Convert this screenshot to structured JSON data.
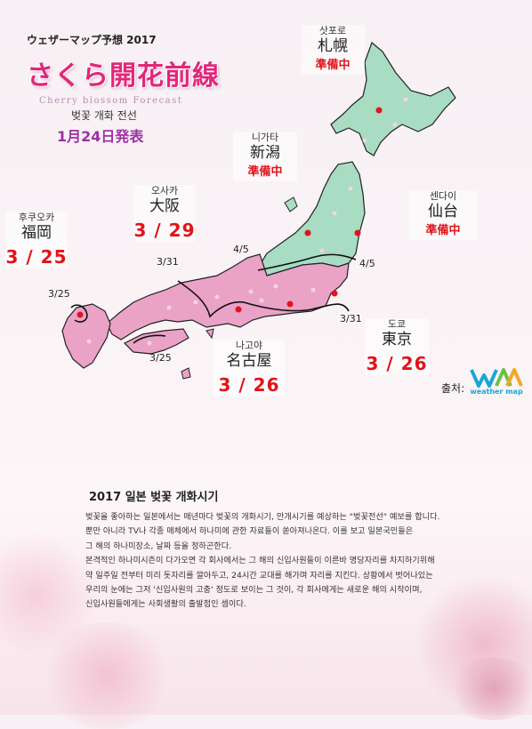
{
  "header": {
    "small_title": "ウェザーマップ予想 2017",
    "main_title": "さくら開花前線",
    "sub_title": "Cherry blossom Forecast",
    "korean_title": "벚꽃 개화 전선",
    "date": "1月24日発表"
  },
  "cities": [
    {
      "kr": "삿포로",
      "jp": "札幌",
      "status": "準備中"
    },
    {
      "kr": "니가타",
      "jp": "新潟",
      "status": "準備中"
    },
    {
      "kr": "센다이",
      "jp": "仙台",
      "status": "準備中"
    },
    {
      "kr": "오사카",
      "jp": "大阪",
      "date": "3 / 29"
    },
    {
      "kr": "후쿠오카",
      "jp": "福岡",
      "date": "3 / 25"
    },
    {
      "kr": "나고야",
      "jp": "名古屋",
      "date": "3 / 26"
    },
    {
      "kr": "도쿄",
      "jp": "東京",
      "date": "3 / 26"
    }
  ],
  "line_labels": [
    "4/5",
    "4/5",
    "3/31",
    "3/31",
    "3/25",
    "3/25"
  ],
  "source": {
    "label": "출처:",
    "logo_text": "weather map"
  },
  "article": {
    "title": "2017 일본 벚꽃 개화시기",
    "paragraphs": [
      "벚꽃을 좋아하는 일본에서는 매년마다 벚꽃의 개화시기, 만개시기를 예상하는 \"벚꽃전선\" 예보를 합니다.",
      "뿐만 아니라 TV나 각종 매체에서 하나미에 관한 자료들이 쏟아져나온다. 이를 보고 일본국민들은",
      "그 해의 하나미장소, 날짜 등을 정하곤한다.",
      "본격적인 하나미시즌이 다가오면 각 회사에서는 그 해의 신입사원들이 이른바 명당자리를 차지하기위해",
      "약 일주일 전부터 미리 돗자리를 깔아두고, 24시간 교대를 해가며 자리를 지킨다. 상황에서 벗어나있는",
      "우리의 눈에는 그저 '신입사원의 고충' 정도로 보이는 그 것이, 각 회사에게는 새로운 해의 시작이며,",
      "신입사원들에게는 사회생활의 출발점인 셈이다."
    ]
  },
  "colors": {
    "north_region": "#a8dcc3",
    "south_region": "#eaa2c7",
    "status_red": "#e0141a",
    "title_pink": "#e0287a",
    "date_purple": "#a02fa8"
  }
}
